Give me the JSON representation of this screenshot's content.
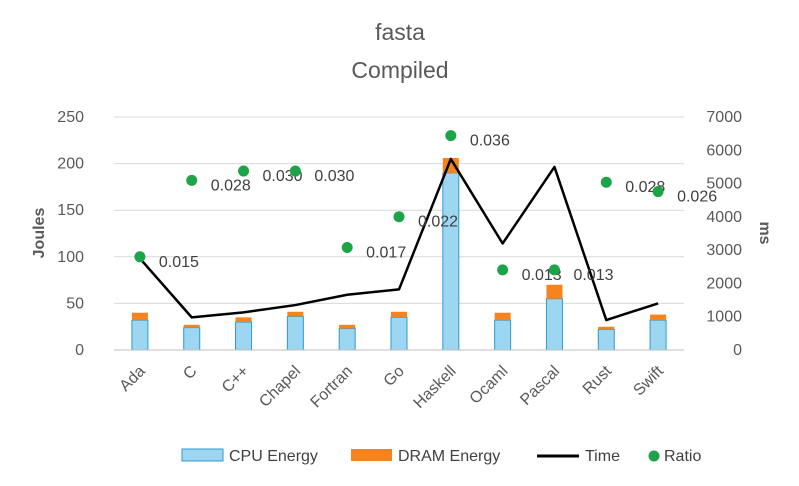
{
  "chart_data": {
    "type": "bar",
    "title": "fasta",
    "subtitle": "Compiled",
    "ylabel": "Joules",
    "y2label": "ms",
    "ylim": [
      0,
      250
    ],
    "y2lim": [
      0,
      7000
    ],
    "yticks": [
      "0",
      "50",
      "100",
      "150",
      "200",
      "250"
    ],
    "y2ticks": [
      "0",
      "1000",
      "2000",
      "3000",
      "4000",
      "5000",
      "6000",
      "7000"
    ],
    "grid": true,
    "legend_position": "bottom",
    "categories": [
      "Ada",
      "C",
      "C++",
      "Chapel",
      "Fortran",
      "Go",
      "Haskell",
      "Ocaml",
      "Pascal",
      "Rust",
      "Swift"
    ],
    "series": [
      {
        "name": "CPU Energy",
        "type": "stacked-bar",
        "axis": "left",
        "color": "#9DD6F0",
        "edge": "#2E9BD0",
        "values": [
          32,
          24,
          30,
          36,
          23,
          35,
          190,
          32,
          55,
          22,
          32
        ]
      },
      {
        "name": "DRAM Energy",
        "type": "stacked-bar",
        "axis": "left",
        "color": "#F5841F",
        "values": [
          8,
          3,
          5,
          5,
          4,
          6,
          16,
          8,
          15,
          3,
          6
        ]
      },
      {
        "name": "Time",
        "type": "line",
        "axis": "right",
        "color": "#000000",
        "values": [
          2750,
          980,
          1130,
          1350,
          1660,
          1820,
          5740,
          3200,
          5500,
          900,
          1400
        ]
      },
      {
        "name": "Ratio",
        "type": "scatter",
        "axis": "left",
        "color": "#1DA348",
        "values": [
          0.015,
          0.028,
          0.03,
          0.03,
          0.017,
          0.022,
          0.036,
          0.013,
          0.013,
          0.028,
          0.026
        ],
        "labels": [
          "0.015",
          "0.028",
          "0.030",
          "0.030",
          "0.017",
          "0.022",
          "0.036",
          "0.013",
          "0.013",
          "0.028",
          "0.026"
        ],
        "positions": [
          100,
          182,
          192,
          192,
          110,
          143,
          230,
          86,
          86,
          180,
          170
        ]
      }
    ],
    "colors": {
      "grid": "#D9D9D9",
      "text": "#595959"
    }
  }
}
